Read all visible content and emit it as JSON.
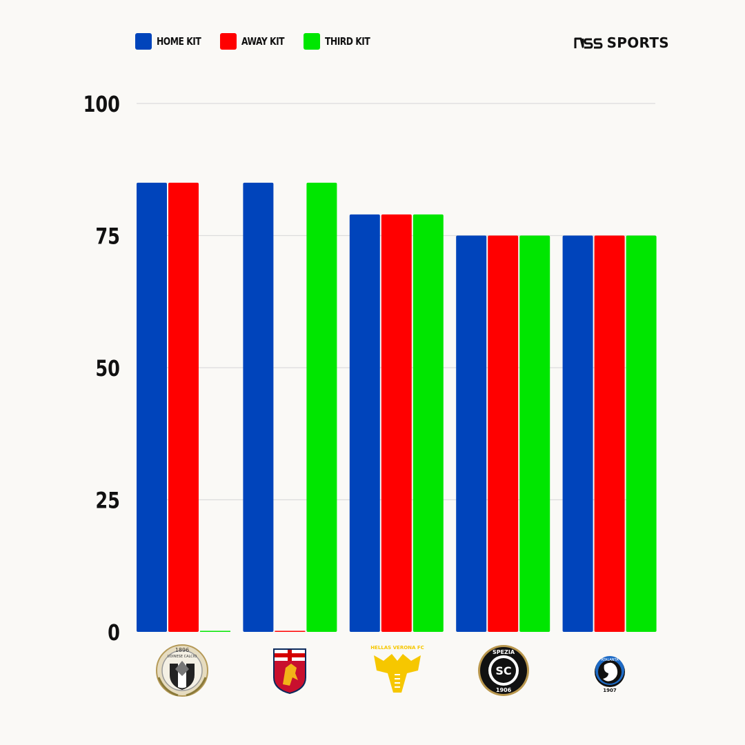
{
  "legend": {
    "items": [
      {
        "label": "HOME KIT",
        "color": "#0044bb"
      },
      {
        "label": "AWAY KIT",
        "color": "#ff0000"
      },
      {
        "label": "THIRD KIT",
        "color": "#00e600"
      }
    ]
  },
  "brand": {
    "name": "SPORTS"
  },
  "chart_data": {
    "type": "bar",
    "categories": [
      "Udinese",
      "Genoa",
      "Hellas Verona",
      "Spezia",
      "Atalanta"
    ],
    "series": [
      {
        "name": "HOME KIT",
        "color": "#0044bb",
        "values": [
          85,
          85,
          79,
          75,
          75
        ]
      },
      {
        "name": "AWAY KIT",
        "color": "#ff0000",
        "values": [
          85,
          0,
          79,
          75,
          75
        ]
      },
      {
        "name": "THIRD KIT",
        "color": "#00e600",
        "values": [
          0,
          85,
          79,
          75,
          75
        ]
      }
    ],
    "ylim": [
      0,
      100
    ],
    "yticks": [
      0,
      25,
      50,
      75,
      100
    ],
    "grid": true,
    "legend_position": "top-left",
    "crest_icons": [
      "udinese-crest",
      "genoa-crest",
      "hellas-verona-crest",
      "spezia-crest",
      "atalanta-crest"
    ],
    "crest_texts": {
      "udinese": [
        "1896",
        "UDINESE CALCIO"
      ],
      "verona": "HELLAS VERONA FC",
      "spezia": [
        "SPEZIA",
        "1906"
      ],
      "atalanta": [
        "ATALANTA",
        "1907"
      ]
    }
  }
}
